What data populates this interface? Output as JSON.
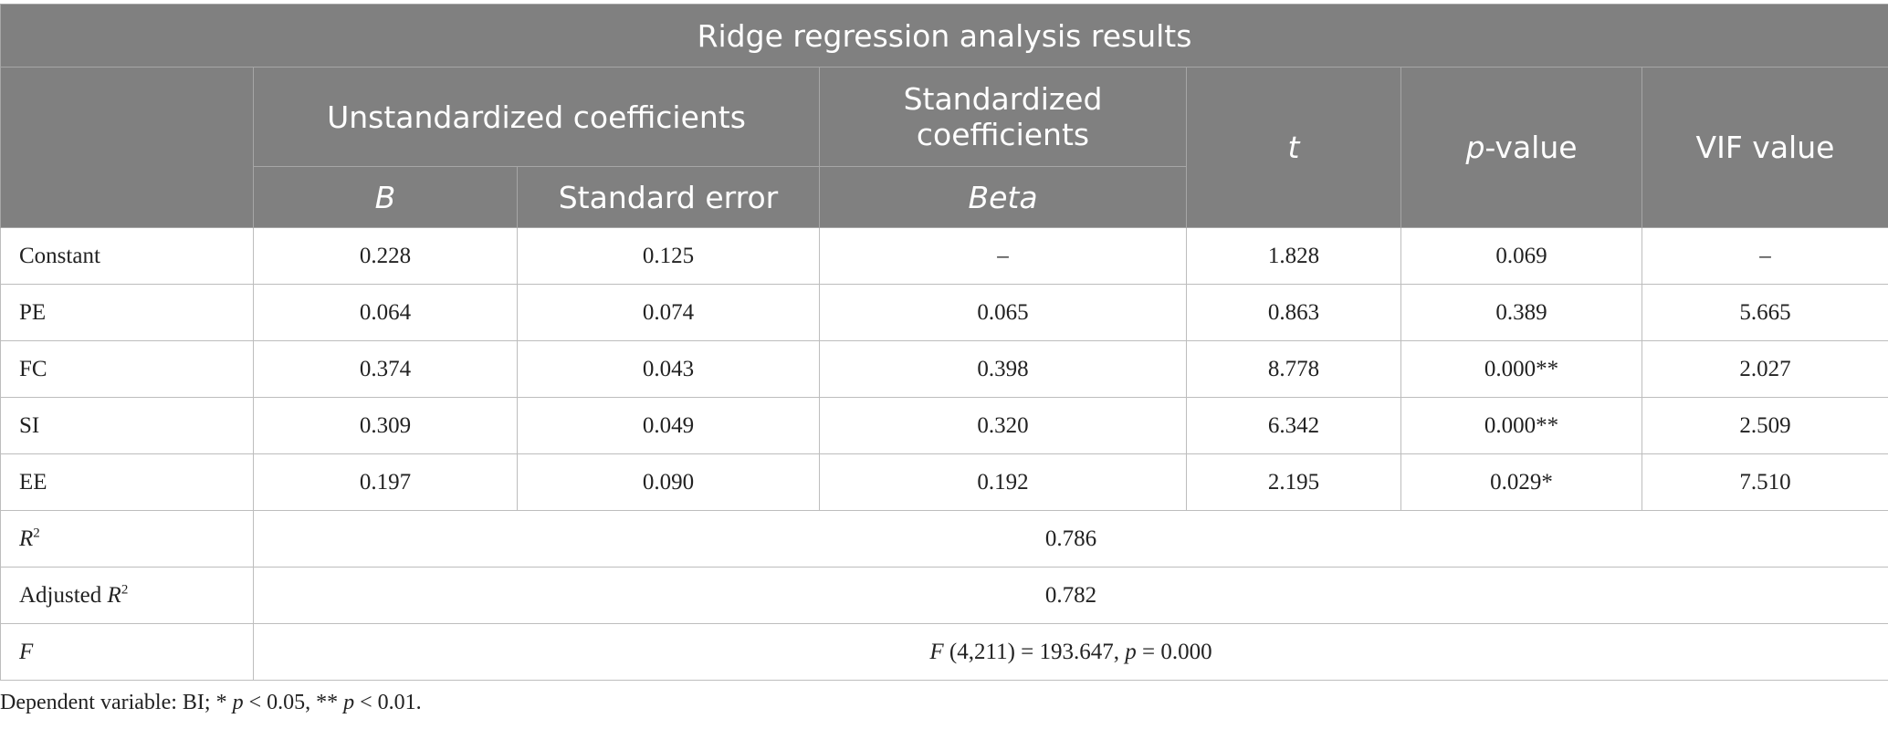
{
  "title": "Ridge regression analysis results",
  "headers": {
    "unstd": "Unstandardized coefficients",
    "std": "Standardized coefficients",
    "t": "t",
    "p_italic": "p",
    "p_rest": "-value",
    "vif": "VIF value",
    "b": "B",
    "se": "Standard error",
    "beta": "Beta"
  },
  "rows": [
    {
      "label": "Constant",
      "b": "0.228",
      "se": "0.125",
      "beta": "–",
      "t": "1.828",
      "p": "0.069",
      "vif": "–"
    },
    {
      "label": "PE",
      "b": "0.064",
      "se": "0.074",
      "beta": "0.065",
      "t": "0.863",
      "p": "0.389",
      "vif": "5.665"
    },
    {
      "label": "FC",
      "b": "0.374",
      "se": "0.043",
      "beta": "0.398",
      "t": "8.778",
      "p": "0.000**",
      "vif": "2.027"
    },
    {
      "label": "SI",
      "b": "0.309",
      "se": "0.049",
      "beta": "0.320",
      "t": "6.342",
      "p": "0.000**",
      "vif": "2.509"
    },
    {
      "label": "EE",
      "b": "0.197",
      "se": "0.090",
      "beta": "0.192",
      "t": "2.195",
      "p": "0.029*",
      "vif": "7.510"
    }
  ],
  "r2": {
    "label_italic": "R",
    "label_sup": "2",
    "value": "0.786"
  },
  "adj_r2": {
    "label_pre": "Adjusted ",
    "label_italic": "R",
    "label_sup": "2",
    "value": "0.782"
  },
  "f_row": {
    "label": "F",
    "f_italic": "F",
    "f_mid": " (4,211) = 193.647, ",
    "p_italic": "p",
    "p_tail": " = 0.000"
  },
  "note": {
    "pre": "Dependent variable: BI; * ",
    "p1": "p",
    "mid": " < 0.05, ** ",
    "p2": "p",
    "tail": " < 0.01."
  }
}
